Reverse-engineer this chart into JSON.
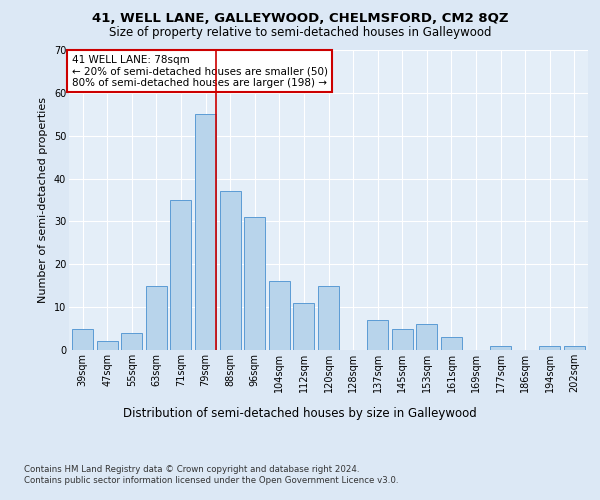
{
  "title1": "41, WELL LANE, GALLEYWOOD, CHELMSFORD, CM2 8QZ",
  "title2": "Size of property relative to semi-detached houses in Galleywood",
  "xlabel": "Distribution of semi-detached houses by size in Galleywood",
  "ylabel": "Number of semi-detached properties",
  "footnote1": "Contains HM Land Registry data © Crown copyright and database right 2024.",
  "footnote2": "Contains public sector information licensed under the Open Government Licence v3.0.",
  "bar_labels": [
    "39sqm",
    "47sqm",
    "55sqm",
    "63sqm",
    "71sqm",
    "79sqm",
    "88sqm",
    "96sqm",
    "104sqm",
    "112sqm",
    "120sqm",
    "128sqm",
    "137sqm",
    "145sqm",
    "153sqm",
    "161sqm",
    "169sqm",
    "177sqm",
    "186sqm",
    "194sqm",
    "202sqm"
  ],
  "bar_values": [
    5,
    2,
    4,
    15,
    35,
    55,
    37,
    31,
    16,
    11,
    15,
    0,
    7,
    5,
    6,
    3,
    0,
    1,
    0,
    1,
    1
  ],
  "bar_color": "#b8d4eb",
  "bar_edge_color": "#5b9bd5",
  "property_label": "41 WELL LANE: 78sqm",
  "annotation_line1": "← 20% of semi-detached houses are smaller (50)",
  "annotation_line2": "80% of semi-detached houses are larger (198) →",
  "vline_color": "#cc0000",
  "vline_x_bin": 5,
  "annotation_box_color": "#cc0000",
  "ylim": [
    0,
    70
  ],
  "yticks": [
    0,
    10,
    20,
    30,
    40,
    50,
    60,
    70
  ],
  "bg_color": "#dce8f5",
  "plot_bg_color": "#e4eef8",
  "grid_color": "#ffffff",
  "title1_fontsize": 9.5,
  "title2_fontsize": 8.5,
  "ylabel_fontsize": 8,
  "xlabel_fontsize": 8.5,
  "tick_fontsize": 7,
  "annot_fontsize": 7.5,
  "footnote_fontsize": 6.2
}
